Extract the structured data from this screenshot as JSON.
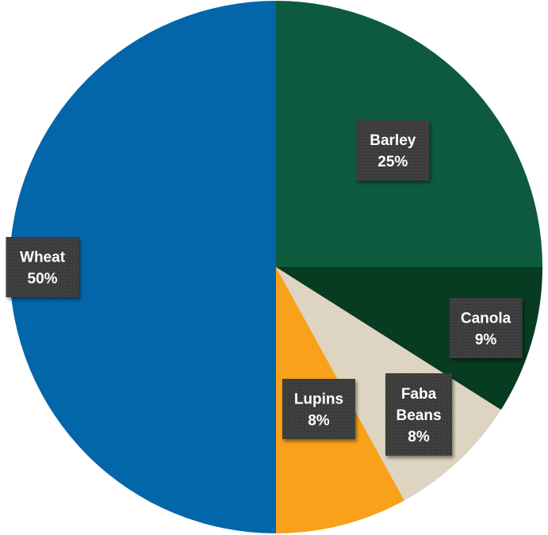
{
  "chart_data": {
    "type": "pie",
    "title": "",
    "slices": [
      {
        "name": "Barley",
        "label_lines": [
          "Barley"
        ],
        "percent_label": "25%",
        "value": 25,
        "color": "#0d5a3f"
      },
      {
        "name": "Canola",
        "label_lines": [
          "Canola"
        ],
        "percent_label": "9%",
        "value": 9,
        "color": "#073b22"
      },
      {
        "name": "Faba Beans",
        "label_lines": [
          "Faba",
          "Beans"
        ],
        "percent_label": "8%",
        "value": 8,
        "color": "#ddd5c2"
      },
      {
        "name": "Lupins",
        "label_lines": [
          "Lupins"
        ],
        "percent_label": "8%",
        "value": 8,
        "color": "#f9a11b"
      },
      {
        "name": "Wheat",
        "label_lines": [
          "Wheat"
        ],
        "percent_label": "50%",
        "value": 50,
        "color": "#0266a9"
      }
    ],
    "start_angle": "12 o'clock",
    "direction": "clockwise",
    "legend": "none",
    "label_box_color": "#3a3a3a"
  }
}
